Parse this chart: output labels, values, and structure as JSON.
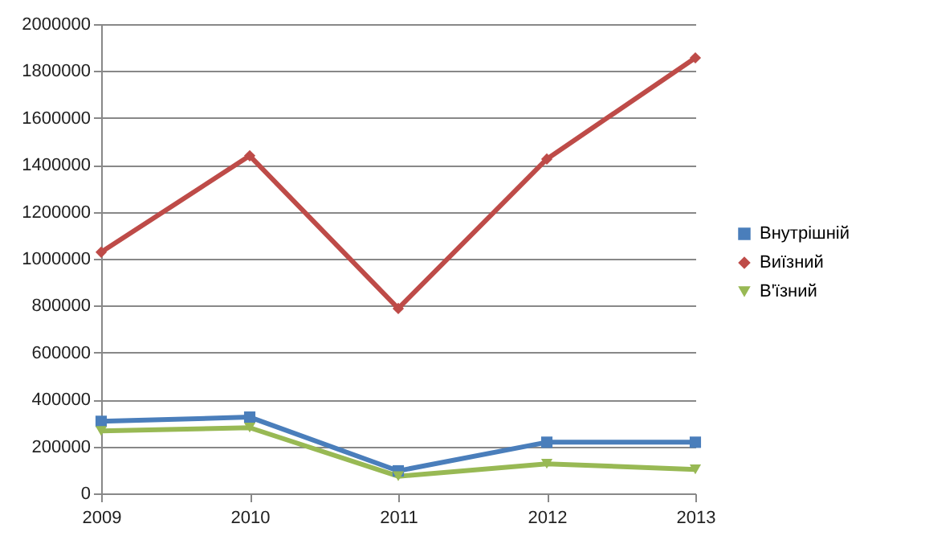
{
  "chart_data": {
    "type": "line",
    "x": [
      2009,
      2010,
      2011,
      2012,
      2013
    ],
    "xlim": [
      2009,
      2013
    ],
    "xticks": [
      2009,
      2010,
      2011,
      2012,
      2013
    ],
    "ylim": [
      0,
      2000000
    ],
    "yticks": [
      0,
      200000,
      400000,
      600000,
      800000,
      1000000,
      1200000,
      1400000,
      1600000,
      1800000,
      2000000
    ],
    "grid": "y",
    "legend": "right",
    "line_style": "solid",
    "series": [
      {
        "name": "Внутрішній",
        "color": "#4a7ebb",
        "marker": "square",
        "values": [
          307000,
          325000,
          96000,
          218000,
          218000
        ]
      },
      {
        "name": "Виїзний",
        "color": "#be4b48",
        "marker": "diamond",
        "values": [
          1028000,
          1439000,
          788000,
          1425000,
          1856000
        ]
      },
      {
        "name": "В'їзний",
        "color": "#98b954",
        "marker": "triangle",
        "values": [
          266000,
          280000,
          73000,
          126000,
          102000
        ]
      }
    ]
  }
}
